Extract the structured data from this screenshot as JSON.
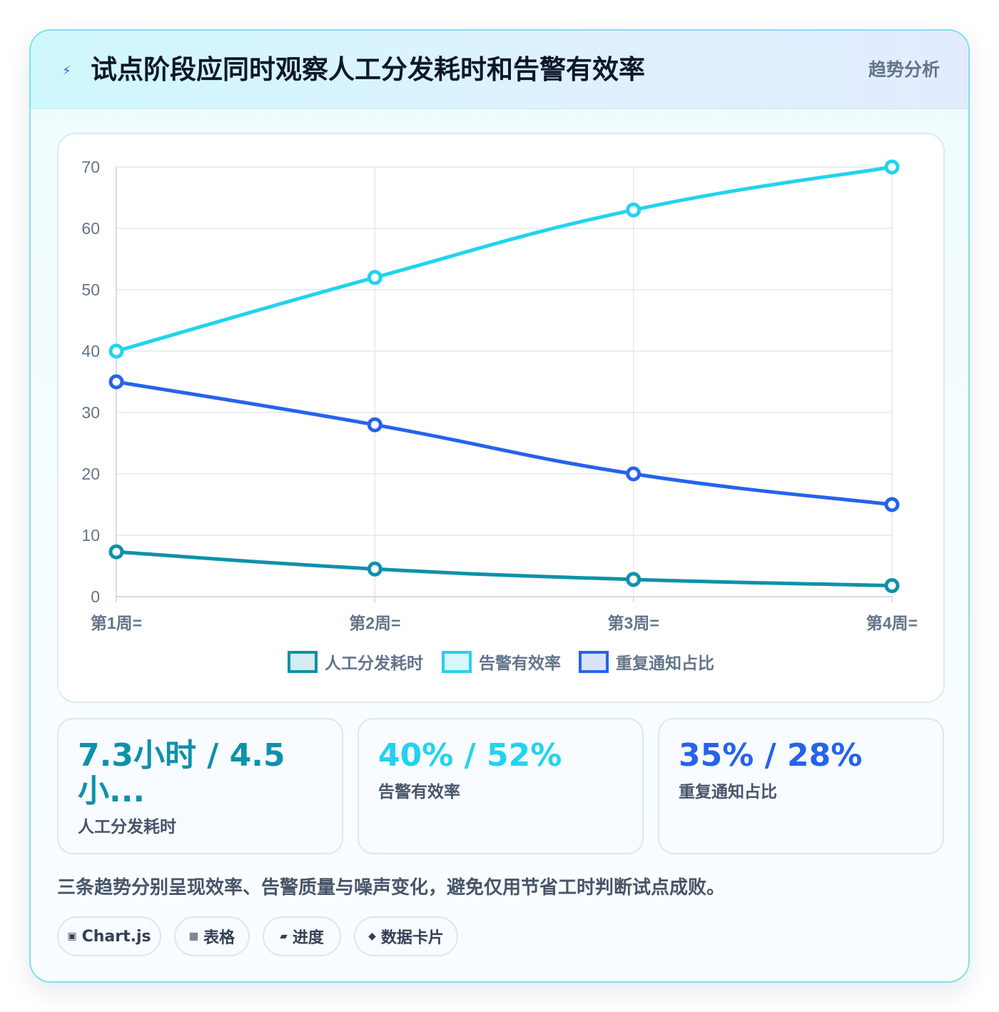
{
  "header": {
    "icon": "lightning-icon",
    "title": "试点阶段应同时观察人工分发耗时和告警有效率",
    "tag": "趋势分析"
  },
  "chart_data": {
    "type": "line",
    "categories": [
      "第1周=",
      "第2周=",
      "第3周=",
      "第4周="
    ],
    "series": [
      {
        "name": "人工分发耗时",
        "values": [
          7.3,
          4.5,
          2.8,
          1.8
        ],
        "color": "#0e91ab"
      },
      {
        "name": "告警有效率",
        "values": [
          40,
          52,
          63,
          70
        ],
        "color": "#22d3ee"
      },
      {
        "name": "重复通知占比",
        "values": [
          35,
          28,
          20,
          15
        ],
        "color": "#2563eb"
      }
    ],
    "ylim": [
      0,
      70
    ],
    "yticks": [
      0,
      10,
      20,
      30,
      40,
      50,
      60,
      70
    ],
    "grid": true,
    "legend_position": "bottom-center"
  },
  "stats": [
    {
      "value": "7.3小时 / 4.5 小...",
      "label": "人工分发耗时",
      "color": "#0e91ab"
    },
    {
      "value": "40% / 52%",
      "label": "告警有效率",
      "color": "#22d3ee"
    },
    {
      "value": "35% / 28%",
      "label": "重复通知占比",
      "color": "#2563eb"
    }
  ],
  "note": "三条趋势分别呈现效率、告警质量与噪声变化，避免仅用节省工时判断试点成败。",
  "chips": [
    {
      "icon": "▣",
      "label": "Chart.js"
    },
    {
      "icon": "▦",
      "label": "表格"
    },
    {
      "icon": "▰",
      "label": "进度"
    },
    {
      "icon": "◆",
      "label": "数据卡片"
    }
  ]
}
